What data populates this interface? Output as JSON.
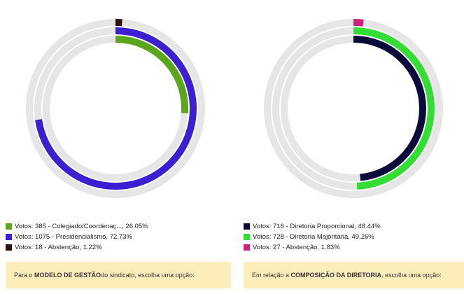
{
  "chart_data": [
    {
      "type": "radial-bar",
      "series": [
        {
          "label": "Votos: 385 - Colegiado/Coordenaç..., 26.05%",
          "value": 26.05,
          "color": "#5aa61c"
        },
        {
          "label": "Votos: 1075 - Presidencialismo, 72.73%",
          "value": 72.73,
          "color": "#3b1fd0"
        },
        {
          "label": "Votos: 18 - Abstenção, 1.22%",
          "value": 1.22,
          "color": "#2e0f0f"
        }
      ],
      "question": {
        "before": "Para o ",
        "bold": "MODELO DE GESTÃO",
        "after": " do sindicato, escolha uma opção:"
      }
    },
    {
      "type": "radial-bar",
      "series": [
        {
          "label": "Votos: 716 - Diretoria Proporcional, 48.44%",
          "value": 48.44,
          "color": "#0b0b3b"
        },
        {
          "label": "Votos: 728 - Diretoria Majoritária, 49.26%",
          "value": 49.26,
          "color": "#33dd33"
        },
        {
          "label": "Votos: 27 - Abstenção, 1.83%",
          "value": 1.83,
          "color": "#cc2277"
        }
      ],
      "question": {
        "before": "Em relação a ",
        "bold": "COMPOSIÇÃO DA DIRETORIA",
        "after": ", escolha uma opção:"
      }
    }
  ],
  "track_color": "#e6e6e6"
}
